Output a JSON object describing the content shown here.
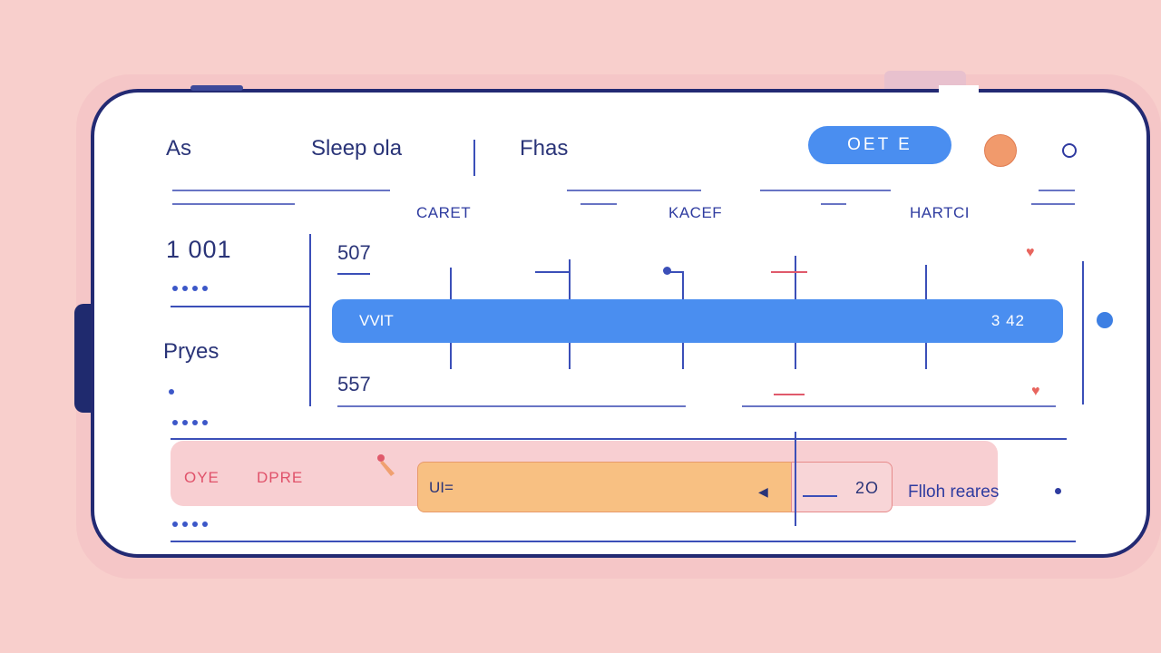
{
  "header": {
    "tab_1": "As",
    "tab_2": "Sleep ola",
    "tab_3": "Fhas",
    "action_button": "OET E"
  },
  "columns": {
    "col_1": "CARET",
    "col_2": "KACEF",
    "col_3": "HARTCI"
  },
  "sidebar": {
    "stat_value": "1 001",
    "section_label": "Pryes"
  },
  "chart": {
    "top_value": "507",
    "bar_left_label": "VVIT",
    "bar_right_value": "3 42",
    "bottom_value": "557"
  },
  "bottom_row": {
    "tag_1": "OYE",
    "tag_2": "DPRE",
    "input_label": "UI=",
    "value": "2O",
    "link_label": "Flloh reares"
  },
  "colors": {
    "background": "#f8cfcc",
    "frame": "#232a73",
    "accent_blue": "#4a8ef0",
    "accent_orange": "#f8c082",
    "accent_pink": "#f8cfd2",
    "heart": "#e8655e"
  }
}
